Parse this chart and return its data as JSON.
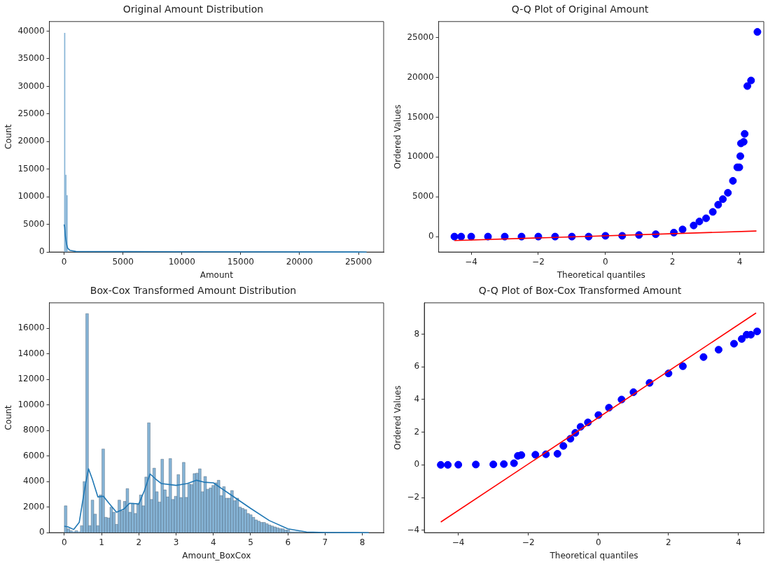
{
  "chart_data": [
    {
      "type": "histogram",
      "title": "Original Amount Distribution",
      "xlabel": "Amount",
      "ylabel": "Count",
      "xlim": [
        -1250,
        27140
      ],
      "xticks": [
        0,
        5000,
        10000,
        15000,
        20000,
        25000
      ],
      "ylim": [
        0,
        41740
      ],
      "yticks": [
        0,
        5000,
        10000,
        15000,
        20000,
        25000,
        30000,
        35000,
        40000
      ],
      "grid": false,
      "legend": false,
      "series": [
        {
          "color": "#86b4d6",
          "bins": [
            0,
            100,
            200,
            300
          ],
          "values": [
            39700,
            14000,
            10300
          ]
        },
        {
          "type": "line",
          "color": "#1f77b4",
          "x": [
            0,
            50,
            100,
            200,
            300,
            500,
            1000,
            25691
          ],
          "values": [
            5000,
            4500,
            3000,
            1500,
            700,
            300,
            100,
            0
          ]
        }
      ]
    },
    {
      "type": "scatter",
      "title": "Q-Q Plot of Original Amount",
      "xlabel": "Theoretical quantiles",
      "ylabel": "Ordered Values",
      "xlim": [
        -4.97,
        4.72
      ],
      "xticks": [
        -4,
        -2,
        0,
        2,
        4
      ],
      "ylim": [
        -1940,
        27000
      ],
      "yticks": [
        0,
        5000,
        10000,
        15000,
        20000,
        25000
      ],
      "grid": false,
      "legend": false,
      "series": [
        {
          "color": "#0000ff",
          "marker": "circle",
          "x": [
            -4.5,
            -4.3,
            -4,
            -3.5,
            -3,
            -2.5,
            -2,
            -1.5,
            -1,
            -0.5,
            0,
            0.5,
            1,
            1.5,
            2.04,
            2.3,
            2.63,
            2.8,
            3.0,
            3.2,
            3.36,
            3.5,
            3.65,
            3.8,
            3.93,
            3.99,
            4.02,
            4.04,
            4.12,
            4.15,
            4.23,
            4.34,
            4.53
          ],
          "values": [
            0,
            0,
            0,
            0,
            0,
            0,
            0,
            0,
            0,
            0,
            100,
            100,
            200,
            300,
            500,
            900,
            1400,
            1900,
            2300,
            3100,
            4000,
            4700,
            5500,
            7000,
            8700,
            8700,
            10100,
            11700,
            11900,
            12900,
            18900,
            19600,
            25700
          ]
        },
        {
          "type": "line",
          "color": "#ff0000",
          "x": [
            -4.5,
            4.5
          ],
          "values": [
            -500,
            700
          ]
        }
      ]
    },
    {
      "type": "histogram",
      "title": "Box-Cox Transformed Amount Distribution",
      "xlabel": "Amount_BoxCox",
      "ylabel": "Count",
      "xlim": [
        -0.4,
        8.57
      ],
      "xticks": [
        0,
        1,
        2,
        3,
        4,
        5,
        6,
        7,
        8
      ],
      "ylim": [
        0,
        17990
      ],
      "yticks": [
        0,
        2000,
        4000,
        6000,
        8000,
        10000,
        12000,
        14000,
        16000
      ],
      "grid": false,
      "legend": false,
      "series": [
        {
          "color": "#86b4d6",
          "bins": [
            0,
            0.072,
            0.144,
            0.216,
            0.288,
            0.36,
            0.432,
            0.504,
            0.576,
            0.648,
            0.72,
            0.792,
            0.864,
            0.936,
            1.008,
            1.08,
            1.152,
            1.224,
            1.296,
            1.368,
            1.44,
            1.512,
            1.584,
            1.656,
            1.728,
            1.8,
            1.872,
            1.944,
            2.016,
            2.088,
            2.16,
            2.232,
            2.304,
            2.376,
            2.448,
            2.52,
            2.592,
            2.664,
            2.736,
            2.808,
            2.88,
            2.952,
            3.024,
            3.096,
            3.168,
            3.24,
            3.312,
            3.384,
            3.456,
            3.528,
            3.6,
            3.672,
            3.744,
            3.816,
            3.888,
            3.96,
            4.032,
            4.104,
            4.176,
            4.248,
            4.32,
            4.392,
            4.464,
            4.536,
            4.608,
            4.68,
            4.752,
            4.824,
            4.896,
            4.968,
            5.04,
            5.112,
            5.184,
            5.256,
            5.328,
            5.4,
            5.472,
            5.544,
            5.616,
            5.688,
            5.76,
            5.832,
            5.904,
            5.976,
            6.048,
            6.12,
            6.192,
            6.264,
            6.336,
            6.408,
            6.48,
            6.552,
            6.624,
            6.696,
            6.768,
            6.84,
            6.912,
            6.984,
            7.056,
            7.128,
            7.2,
            7.272,
            7.344,
            7.416,
            7.488,
            7.56,
            7.632,
            7.704,
            7.776,
            7.848,
            7.92,
            7.992,
            8.064,
            8.136,
            8.208
          ],
          "values": [
            2100,
            300,
            150,
            100,
            150,
            100,
            550,
            4000,
            17150,
            550,
            2550,
            1450,
            550,
            2950,
            6550,
            1200,
            1150,
            2000,
            1600,
            650,
            2550,
            1700,
            2450,
            3450,
            1600,
            2300,
            1500,
            2200,
            2950,
            2100,
            4350,
            8600,
            2600,
            5050,
            3200,
            2400,
            5750,
            3350,
            2800,
            5800,
            2600,
            2850,
            4550,
            2750,
            5500,
            2760,
            3810,
            3770,
            4620,
            4660,
            5000,
            3200,
            4400,
            3400,
            3500,
            3700,
            3900,
            4100,
            2900,
            3600,
            2700,
            2700,
            3300,
            2500,
            2700,
            2000,
            1900,
            1800,
            1500,
            1400,
            1200,
            1000,
            900,
            800,
            800,
            700,
            600,
            520,
            450,
            380,
            310,
            300,
            200,
            200,
            100,
            100,
            100,
            100,
            0,
            0,
            0,
            0,
            0,
            0,
            0,
            0,
            0,
            0,
            0,
            0,
            0,
            0,
            0,
            0,
            0,
            0,
            0,
            0,
            0,
            0,
            0,
            0,
            0,
            0
          ]
        },
        {
          "type": "line",
          "color": "#1f77b4",
          "x": [
            0,
            0.1,
            0.25,
            0.4,
            0.55,
            0.65,
            0.75,
            0.9,
            1.05,
            1.2,
            1.4,
            1.6,
            1.75,
            2.0,
            2.15,
            2.3,
            2.45,
            2.6,
            3.0,
            3.3,
            3.55,
            3.75,
            4.0,
            4.2,
            4.5,
            5.0,
            5.5,
            6.0,
            6.5,
            7.0,
            8.17
          ],
          "values": [
            500,
            450,
            250,
            800,
            3500,
            5000,
            4200,
            2800,
            2850,
            2300,
            1600,
            1850,
            2300,
            2250,
            3300,
            4600,
            4200,
            3850,
            3700,
            3850,
            4100,
            3950,
            3900,
            3500,
            2900,
            1900,
            950,
            300,
            50,
            10,
            0
          ]
        }
      ]
    },
    {
      "type": "scatter",
      "title": "Q-Q Plot of Box-Cox Transformed Amount",
      "xlabel": "Theoretical quantiles",
      "ylabel": "Ordered Values",
      "xlim": [
        -4.97,
        4.72
      ],
      "xticks": [
        -4,
        -2,
        0,
        2,
        4
      ],
      "ylim": [
        -4.15,
        9.92
      ],
      "yticks": [
        -4,
        -2,
        0,
        2,
        4,
        6,
        8
      ],
      "grid": false,
      "legend": false,
      "series": [
        {
          "color": "#0000ff",
          "marker": "circle",
          "x": [
            -4.5,
            -4.3,
            -4,
            -3.5,
            -3,
            -2.7,
            -2.41,
            -2.3,
            -2.2,
            -1.8,
            -1.5,
            -1.17,
            -1.0,
            -0.8,
            -0.66,
            -0.51,
            -0.3,
            0,
            0.3,
            0.66,
            1.0,
            1.46,
            2.0,
            2.41,
            3.0,
            3.43,
            3.87,
            4.09,
            4.23,
            4.35,
            4.53
          ],
          "values": [
            0,
            0,
            0.01,
            0.02,
            0.03,
            0.05,
            0.1,
            0.55,
            0.6,
            0.62,
            0.65,
            0.68,
            1.16,
            1.6,
            1.96,
            2.33,
            2.6,
            3.05,
            3.5,
            4.0,
            4.45,
            5.02,
            5.6,
            6.04,
            6.6,
            7.05,
            7.42,
            7.71,
            7.97,
            7.97,
            8.17
          ]
        },
        {
          "type": "line",
          "color": "#ff0000",
          "x": [
            -4.5,
            4.5
          ],
          "values": [
            -3.5,
            9.3
          ]
        }
      ]
    }
  ]
}
